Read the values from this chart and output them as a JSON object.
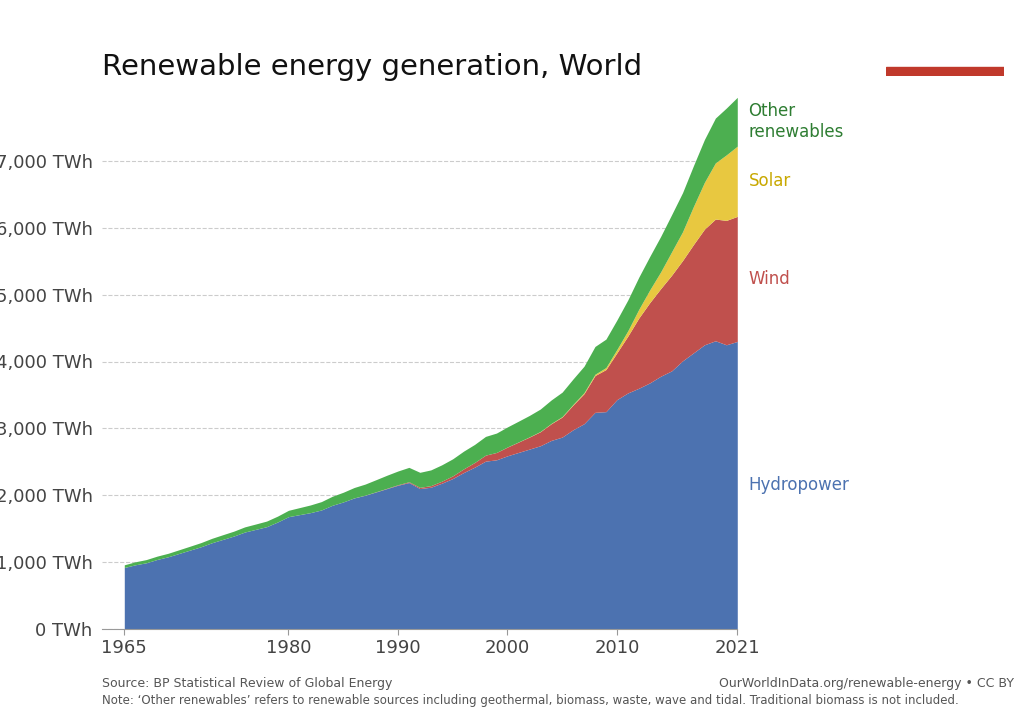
{
  "title": "Renewable energy generation, World",
  "source_text": "Source: BP Statistical Review of Global Energy",
  "note_text": "Note: ‘Other renewables’ refers to renewable sources including geothermal, biomass, waste, wave and tidal. Traditional biomass is not included.",
  "url_text": "OurWorldInData.org/renewable-energy • CC BY",
  "logo_bg": "#1a3a5c",
  "logo_red": "#c0392b",
  "background_color": "#ffffff",
  "ylim": [
    0,
    8000
  ],
  "yticks": [
    0,
    1000,
    2000,
    3000,
    4000,
    5000,
    6000,
    7000
  ],
  "ytick_labels": [
    "0 TWh",
    "1,000 TWh",
    "2,000 TWh",
    "3,000 TWh",
    "4,000 TWh",
    "5,000 TWh",
    "6,000 TWh",
    "7,000 TWh"
  ],
  "xticks": [
    1965,
    1980,
    1990,
    2000,
    2010,
    2021
  ],
  "xtick_labels": [
    "1965",
    "1980",
    "1990",
    "2000",
    "2010",
    "2021"
  ],
  "colors": {
    "hydropower": "#4c72b0",
    "wind": "#c0504d",
    "solar": "#e8c840",
    "other": "#4caf50"
  },
  "label_colors": {
    "hydropower": "#4c72b0",
    "wind": "#c0504d",
    "solar": "#c8a800",
    "other": "#2e7d32"
  },
  "years": [
    1965,
    1966,
    1967,
    1968,
    1969,
    1970,
    1971,
    1972,
    1973,
    1974,
    1975,
    1976,
    1977,
    1978,
    1979,
    1980,
    1981,
    1982,
    1983,
    1984,
    1985,
    1986,
    1987,
    1988,
    1989,
    1990,
    1991,
    1992,
    1993,
    1994,
    1995,
    1996,
    1997,
    1998,
    1999,
    2000,
    2001,
    2002,
    2003,
    2004,
    2005,
    2006,
    2007,
    2008,
    2009,
    2010,
    2011,
    2012,
    2013,
    2014,
    2015,
    2016,
    2017,
    2018,
    2019,
    2020,
    2021
  ],
  "hydropower": [
    920,
    960,
    990,
    1040,
    1080,
    1130,
    1180,
    1230,
    1290,
    1340,
    1390,
    1450,
    1490,
    1530,
    1600,
    1680,
    1710,
    1740,
    1780,
    1850,
    1900,
    1960,
    2000,
    2050,
    2100,
    2150,
    2190,
    2100,
    2120,
    2180,
    2250,
    2340,
    2420,
    2510,
    2530,
    2590,
    2640,
    2690,
    2740,
    2820,
    2870,
    2980,
    3070,
    3240,
    3250,
    3430,
    3530,
    3600,
    3680,
    3780,
    3860,
    4010,
    4130,
    4250,
    4310,
    4250,
    4300
  ],
  "wind": [
    0,
    0,
    0,
    0,
    0,
    0,
    0,
    0,
    0,
    0,
    0,
    0,
    0,
    0,
    0,
    0,
    0,
    0,
    0,
    0,
    0,
    1,
    2,
    3,
    5,
    8,
    12,
    18,
    24,
    30,
    40,
    55,
    70,
    90,
    110,
    131,
    155,
    180,
    210,
    250,
    300,
    370,
    450,
    550,
    630,
    700,
    850,
    1050,
    1200,
    1310,
    1430,
    1500,
    1620,
    1730,
    1820,
    1860,
    1870
  ],
  "solar": [
    0,
    0,
    0,
    0,
    0,
    0,
    0,
    0,
    0,
    0,
    0,
    0,
    0,
    0,
    0,
    0,
    0,
    0,
    0,
    0,
    0,
    0,
    0,
    0,
    0,
    0,
    0,
    0,
    0,
    0,
    0,
    0,
    0,
    0,
    0,
    1,
    2,
    3,
    4,
    5,
    7,
    10,
    15,
    20,
    30,
    50,
    80,
    130,
    190,
    250,
    350,
    430,
    570,
    700,
    840,
    980,
    1050
  ],
  "other": [
    40,
    45,
    48,
    50,
    52,
    55,
    58,
    62,
    66,
    70,
    73,
    77,
    80,
    84,
    88,
    95,
    105,
    115,
    125,
    135,
    145,
    155,
    165,
    180,
    195,
    205,
    215,
    225,
    235,
    245,
    255,
    265,
    270,
    280,
    290,
    300,
    310,
    320,
    335,
    350,
    365,
    380,
    395,
    415,
    425,
    440,
    460,
    480,
    500,
    530,
    555,
    585,
    610,
    640,
    670,
    700,
    730
  ]
}
